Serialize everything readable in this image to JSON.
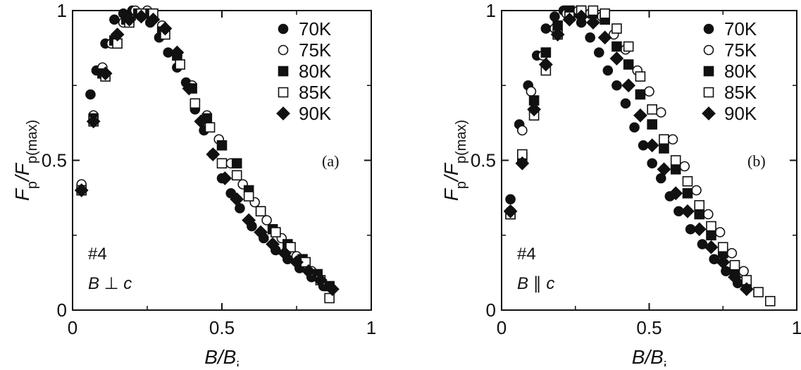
{
  "chart_data": [
    {
      "type": "scatter",
      "panel": "(a)",
      "sample": "#4",
      "orientation": "B ⊥ c",
      "xlabel": "B/B",
      "xlabel_sub": "i",
      "ylabel": "F",
      "ylabel_sub1": "p",
      "ylabel_mid": "/F",
      "ylabel_sub2": "p(max)",
      "xlim": [
        0,
        1
      ],
      "ylim": [
        0,
        1
      ],
      "xticks": [
        "0",
        "0.5",
        "1"
      ],
      "yticks": [
        "0",
        "0.5",
        "1"
      ],
      "legend_position": "top-right",
      "series": [
        {
          "name": "70K",
          "marker": "filled-circle",
          "x": [
            0.03,
            0.06,
            0.08,
            0.11,
            0.14,
            0.17,
            0.2,
            0.23,
            0.26,
            0.29,
            0.32,
            0.35,
            0.38,
            0.41,
            0.44,
            0.47,
            0.5,
            0.53,
            0.56,
            0.6,
            0.64,
            0.68,
            0.72,
            0.76,
            0.8,
            0.84
          ],
          "y": [
            0.4,
            0.72,
            0.8,
            0.89,
            0.97,
            0.99,
            1.0,
            0.98,
            0.96,
            0.91,
            0.86,
            0.81,
            0.76,
            0.67,
            0.6,
            0.52,
            0.44,
            0.39,
            0.34,
            0.28,
            0.24,
            0.2,
            0.17,
            0.14,
            0.11,
            0.08
          ]
        },
        {
          "name": "75K",
          "marker": "open-circle",
          "x": [
            0.03,
            0.07,
            0.1,
            0.13,
            0.17,
            0.21,
            0.25,
            0.3,
            0.35,
            0.4,
            0.45,
            0.49,
            0.53,
            0.57,
            0.61,
            0.65,
            0.7,
            0.75,
            0.8
          ],
          "y": [
            0.42,
            0.65,
            0.81,
            0.89,
            0.96,
            1.0,
            1.0,
            0.95,
            0.85,
            0.75,
            0.65,
            0.57,
            0.49,
            0.42,
            0.36,
            0.3,
            0.24,
            0.18,
            0.13
          ]
        },
        {
          "name": "80K",
          "marker": "filled-square",
          "x": [
            0.03,
            0.07,
            0.1,
            0.14,
            0.18,
            0.22,
            0.26,
            0.3,
            0.35,
            0.4,
            0.45,
            0.5,
            0.55,
            0.59,
            0.63,
            0.67,
            0.72,
            0.77,
            0.82,
            0.86
          ],
          "y": [
            0.4,
            0.64,
            0.79,
            0.9,
            0.97,
            0.99,
            0.99,
            0.93,
            0.85,
            0.74,
            0.64,
            0.55,
            0.49,
            0.4,
            0.33,
            0.27,
            0.22,
            0.17,
            0.12,
            0.08
          ]
        },
        {
          "name": "85K",
          "marker": "open-square",
          "x": [
            0.03,
            0.07,
            0.11,
            0.15,
            0.19,
            0.23,
            0.27,
            0.31,
            0.36,
            0.41,
            0.46,
            0.5,
            0.55,
            0.59,
            0.63,
            0.68,
            0.73,
            0.78,
            0.83,
            0.86
          ],
          "y": [
            0.4,
            0.63,
            0.78,
            0.89,
            0.96,
            0.99,
            0.99,
            0.92,
            0.82,
            0.69,
            0.61,
            0.49,
            0.45,
            0.38,
            0.33,
            0.26,
            0.21,
            0.16,
            0.1,
            0.04
          ]
        },
        {
          "name": "90K",
          "marker": "filled-diamond",
          "x": [
            0.03,
            0.07,
            0.11,
            0.15,
            0.19,
            0.23,
            0.27,
            0.31,
            0.35,
            0.39,
            0.43,
            0.47,
            0.51,
            0.55,
            0.59,
            0.63,
            0.67,
            0.71,
            0.75,
            0.79,
            0.83,
            0.87
          ],
          "y": [
            0.4,
            0.63,
            0.79,
            0.92,
            0.97,
            0.98,
            0.97,
            0.94,
            0.86,
            0.74,
            0.63,
            0.52,
            0.44,
            0.37,
            0.3,
            0.26,
            0.22,
            0.19,
            0.16,
            0.13,
            0.1,
            0.07
          ]
        }
      ]
    },
    {
      "type": "scatter",
      "panel": "(b)",
      "sample": "#4",
      "orientation": "B ∥ c",
      "xlabel": "B/B",
      "xlabel_sub": "i",
      "ylabel": "F",
      "ylabel_sub1": "p",
      "ylabel_mid": "/F",
      "ylabel_sub2": "p(max)",
      "xlim": [
        0,
        1
      ],
      "ylim": [
        0,
        1
      ],
      "xticks": [
        "0",
        "0.5",
        "1"
      ],
      "yticks": [
        "0",
        "0.5",
        "1"
      ],
      "legend_position": "top-right",
      "series": [
        {
          "name": "70K",
          "marker": "filled-circle",
          "x": [
            0.03,
            0.06,
            0.09,
            0.12,
            0.15,
            0.18,
            0.21,
            0.24,
            0.27,
            0.3,
            0.33,
            0.36,
            0.39,
            0.42,
            0.45,
            0.48,
            0.51,
            0.54,
            0.57,
            0.6,
            0.64,
            0.68,
            0.72,
            0.76,
            0.8
          ],
          "y": [
            0.37,
            0.62,
            0.75,
            0.85,
            0.94,
            0.98,
            1.0,
            0.99,
            0.96,
            0.91,
            0.86,
            0.8,
            0.75,
            0.69,
            0.61,
            0.55,
            0.49,
            0.44,
            0.38,
            0.33,
            0.27,
            0.22,
            0.17,
            0.13,
            0.09
          ]
        },
        {
          "name": "75K",
          "marker": "open-circle",
          "x": [
            0.03,
            0.07,
            0.1,
            0.14,
            0.18,
            0.22,
            0.26,
            0.3,
            0.34,
            0.38,
            0.42,
            0.46,
            0.5,
            0.54,
            0.58,
            0.62,
            0.66,
            0.7,
            0.74,
            0.78,
            0.82
          ],
          "y": [
            0.33,
            0.6,
            0.73,
            0.85,
            0.94,
            0.99,
            1.0,
            0.99,
            0.98,
            0.92,
            0.87,
            0.8,
            0.73,
            0.66,
            0.57,
            0.48,
            0.4,
            0.32,
            0.26,
            0.19,
            0.13
          ]
        },
        {
          "name": "80K",
          "marker": "filled-square",
          "x": [
            0.03,
            0.07,
            0.11,
            0.15,
            0.19,
            0.23,
            0.27,
            0.31,
            0.35,
            0.39,
            0.43,
            0.47,
            0.51,
            0.55,
            0.59,
            0.63,
            0.67,
            0.71,
            0.75,
            0.79,
            0.83
          ],
          "y": [
            0.32,
            0.51,
            0.7,
            0.86,
            0.95,
            1.0,
            1.0,
            0.99,
            0.97,
            0.88,
            0.82,
            0.72,
            0.62,
            0.54,
            0.47,
            0.39,
            0.32,
            0.25,
            0.19,
            0.13,
            0.08
          ]
        },
        {
          "name": "85K",
          "marker": "open-square",
          "x": [
            0.03,
            0.07,
            0.11,
            0.15,
            0.19,
            0.23,
            0.27,
            0.31,
            0.35,
            0.39,
            0.43,
            0.47,
            0.51,
            0.55,
            0.59,
            0.63,
            0.67,
            0.71,
            0.75,
            0.79,
            0.83,
            0.87,
            0.91
          ],
          "y": [
            0.32,
            0.52,
            0.65,
            0.8,
            0.92,
            0.98,
            1.0,
            1.0,
            0.99,
            0.94,
            0.88,
            0.78,
            0.67,
            0.57,
            0.5,
            0.43,
            0.35,
            0.28,
            0.21,
            0.15,
            0.1,
            0.06,
            0.03
          ]
        },
        {
          "name": "90K",
          "marker": "filled-diamond",
          "x": [
            0.03,
            0.07,
            0.11,
            0.15,
            0.19,
            0.23,
            0.27,
            0.31,
            0.35,
            0.39,
            0.43,
            0.47,
            0.51,
            0.55,
            0.59,
            0.63,
            0.67,
            0.71,
            0.75,
            0.79,
            0.83
          ],
          "y": [
            0.33,
            0.49,
            0.67,
            0.82,
            0.92,
            0.97,
            0.98,
            0.96,
            0.91,
            0.84,
            0.75,
            0.65,
            0.55,
            0.47,
            0.39,
            0.33,
            0.27,
            0.21,
            0.16,
            0.11,
            0.07
          ]
        }
      ]
    }
  ]
}
